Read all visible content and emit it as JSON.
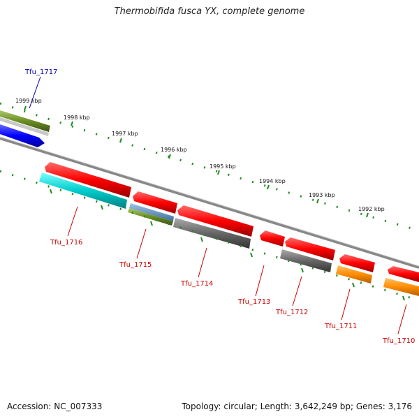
{
  "title": "Thermobifida fusca YX, complete genome",
  "footer": {
    "accession": "Accession: NC_007333",
    "stats": "Topology: circular; Length: 3,642,249 bp; Genes: 3,176"
  },
  "kbp_labels": [
    "1999 kbp",
    "1998 kbp",
    "1997 kbp",
    "1996 kbp",
    "1995 kbp",
    "1994 kbp",
    "1993 kbp",
    "1992 kbp"
  ],
  "gene_labels": [
    "Tfu_1717",
    "Tfu_1716",
    "Tfu_1715",
    "Tfu_1714",
    "Tfu_1713",
    "Tfu_1712",
    "Tfu_1711",
    "Tfu_1710"
  ],
  "colors": {
    "forward_cds": "#ff0000",
    "reverse_label": "#cc0000",
    "forward_label": "#0000aa",
    "blue_feature": "#0000ff",
    "cyan_feature": "#00cccc",
    "green_feature": "#6b8e23",
    "gray_feature": "#666666",
    "orange_feature": "#ff8c00",
    "tick_color": "#228b22",
    "backbone": "#888888"
  }
}
